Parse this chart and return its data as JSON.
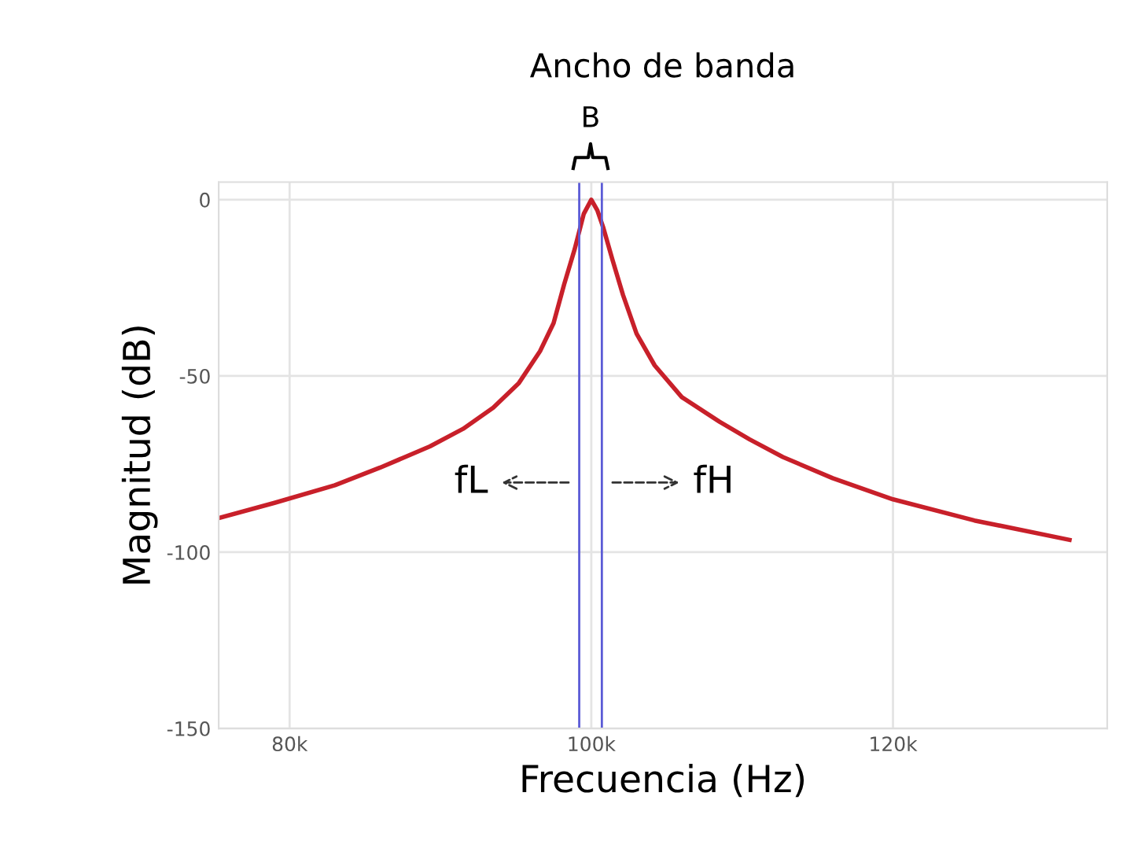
{
  "chart_data": {
    "type": "line",
    "title": "Ancho de banda",
    "xlabel": "Frecuencia (Hz)",
    "ylabel": "Magnitud (dB)",
    "x": [
      75300,
      79000,
      83000,
      86000,
      89300,
      91500,
      93500,
      95200,
      96600,
      97500,
      98200,
      98900,
      99500,
      100000,
      100400,
      100800,
      101400,
      102100,
      103000,
      104200,
      106000,
      108500,
      110500,
      112700,
      116000,
      120000,
      125400,
      131700
    ],
    "series": [
      {
        "color": "#c8202a",
        "values": [
          -90.3,
          -86,
          -81,
          -76,
          -70,
          -65,
          -59,
          -52,
          -43,
          -35,
          -24,
          -14,
          -4,
          0,
          -3,
          -8,
          -17,
          -27,
          -38,
          -47,
          -56,
          -63,
          -68,
          -73,
          -79,
          -85,
          -91,
          -96.5
        ]
      }
    ],
    "xlim": [
      75300,
      134200
    ],
    "ylim": [
      -150,
      5
    ],
    "xticks": [
      {
        "value": 80000,
        "label": "80k"
      },
      {
        "value": 100000,
        "label": "100k"
      },
      {
        "value": 120000,
        "label": "120k"
      }
    ],
    "yticks": [
      0,
      -50,
      -100,
      -150
    ],
    "grid": true,
    "legend": false,
    "marker": "none",
    "line_style": "solid",
    "ref_lines": [
      {
        "axis": "x",
        "value": 99200,
        "color": "#5b5bd6"
      },
      {
        "axis": "x",
        "value": 100700,
        "color": "#5b5bd6"
      }
    ],
    "annotations": [
      "B",
      "fL",
      "fH"
    ]
  }
}
